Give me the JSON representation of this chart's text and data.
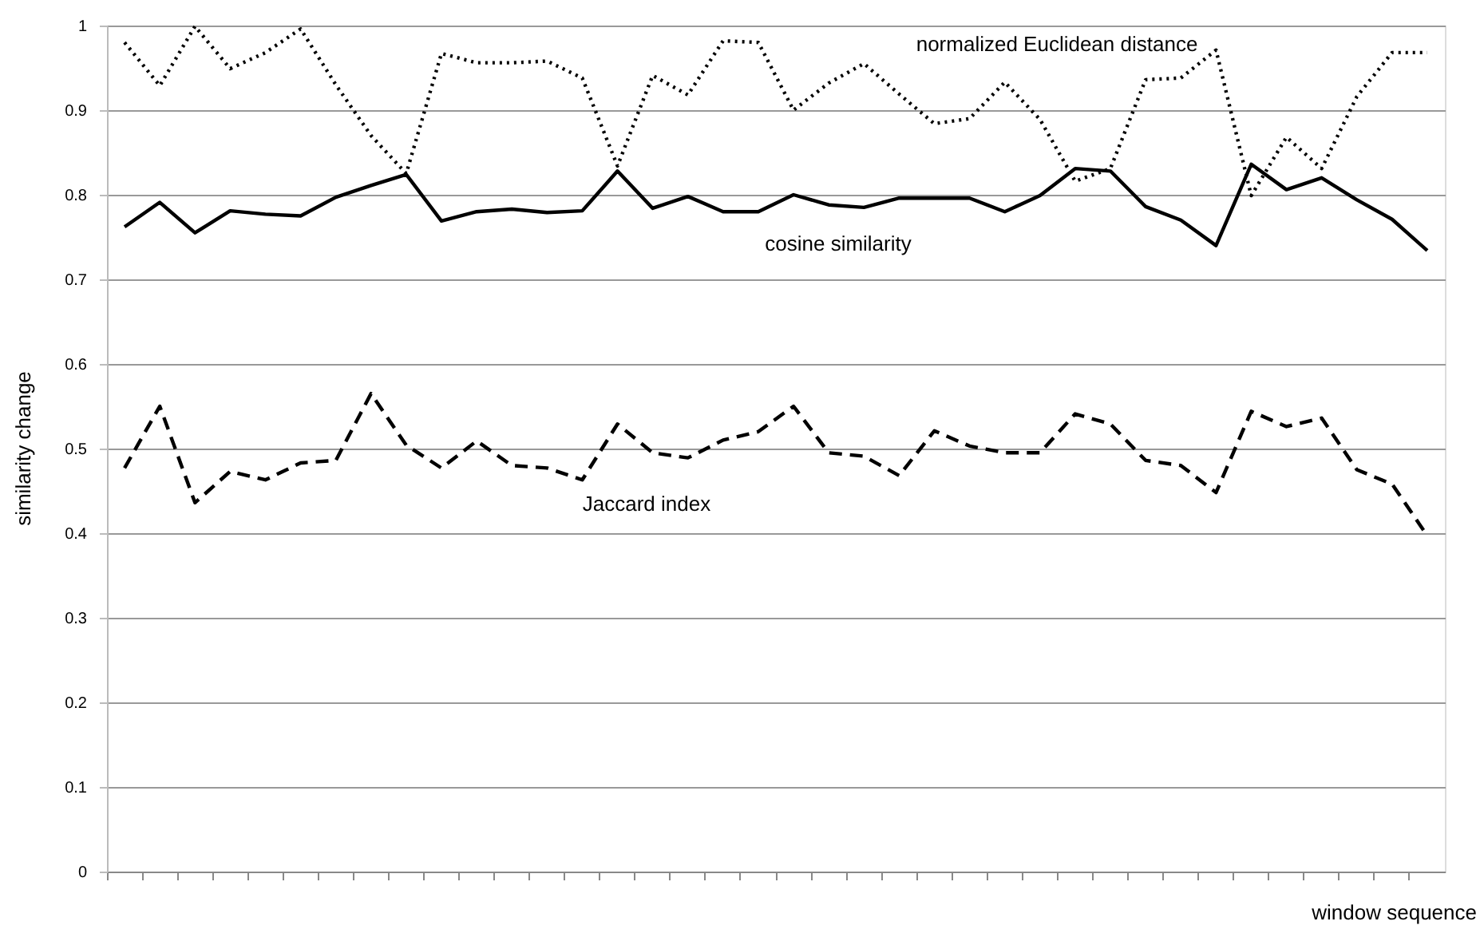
{
  "chart_data": {
    "type": "line",
    "xlabel": "window sequence",
    "ylabel": "similarity change",
    "categories": [
      null,
      null,
      null,
      null,
      null,
      null,
      null,
      null,
      null,
      null,
      null,
      null,
      null,
      null,
      null,
      null,
      null,
      null,
      null,
      null,
      null,
      null,
      null,
      null,
      null,
      null,
      null,
      null,
      null,
      null,
      null,
      null,
      null,
      null,
      null,
      null,
      null,
      null
    ],
    "series": [
      {
        "name": "normalized Euclidean distance",
        "color": "#000000",
        "line_style": "dotted",
        "values": [
          0.98,
          0.929,
          0.999,
          0.949,
          0.968,
          0.996,
          0.93,
          0.87,
          0.825,
          0.967,
          0.956,
          0.956,
          0.958,
          0.938,
          0.834,
          0.941,
          0.918,
          0.982,
          0.98,
          0.9,
          0.932,
          0.955,
          0.919,
          0.884,
          0.89,
          0.933,
          0.889,
          0.816,
          0.831,
          0.936,
          0.938,
          0.971,
          0.799,
          0.868,
          0.831,
          0.916,
          0.968,
          0.968
        ]
      },
      {
        "name": "cosine similarity",
        "color": "#000000",
        "line_style": "solid",
        "values": [
          0.762,
          0.791,
          0.755,
          0.781,
          0.777,
          0.775,
          0.797,
          0.811,
          0.824,
          0.769,
          0.78,
          0.783,
          0.779,
          0.781,
          0.828,
          0.784,
          0.798,
          0.78,
          0.78,
          0.8,
          0.788,
          0.785,
          0.796,
          0.796,
          0.796,
          0.78,
          0.799,
          0.831,
          0.828,
          0.786,
          0.77,
          0.74,
          0.836,
          0.806,
          0.82,
          0.794,
          0.771,
          0.734
        ]
      },
      {
        "name": "Jaccard index",
        "color": "#000000",
        "line_style": "dashed",
        "values": [
          0.477,
          0.55,
          0.436,
          0.473,
          0.463,
          0.483,
          0.486,
          0.565,
          0.504,
          0.477,
          0.509,
          0.48,
          0.477,
          0.463,
          0.529,
          0.495,
          0.489,
          0.51,
          0.52,
          0.55,
          0.495,
          0.491,
          0.468,
          0.521,
          0.503,
          0.495,
          0.495,
          0.541,
          0.529,
          0.486,
          0.48,
          0.448,
          0.544,
          0.526,
          0.536,
          0.475,
          0.458,
          0.397
        ]
      }
    ],
    "ylim": [
      0,
      1
    ],
    "yticks": [
      0,
      0.1,
      0.2,
      0.3,
      0.4,
      0.5,
      0.6,
      0.7,
      0.8,
      0.9,
      1
    ],
    "grid": "y",
    "legend": false,
    "tick_labels": "y",
    "marker": "none"
  }
}
